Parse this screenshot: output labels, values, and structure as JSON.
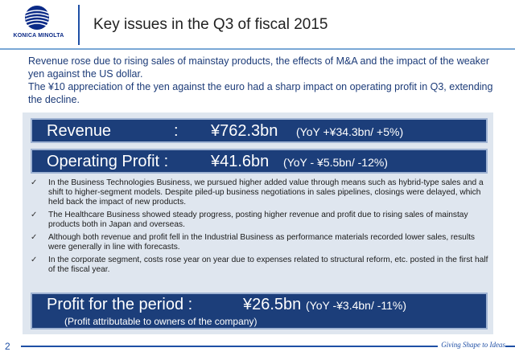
{
  "header": {
    "logo_text": "KONICA MINOLTA",
    "title": "Key issues in the Q3 of fiscal 2015"
  },
  "intro": [
    "Revenue rose due to rising sales of mainstay products, the effects of M&A and the impact of the weaker yen against the US dollar.",
    "The ¥10 appreciation of the yen against the euro had a sharp impact on operating profit in Q3, extending the decline."
  ],
  "revenue": {
    "label": "Revenue",
    "colon": ":",
    "value": "¥762.3bn",
    "yoy": "(YoY  +¥34.3bn/  +5%)"
  },
  "operating_profit": {
    "label": "Operating Profit :",
    "value": "¥41.6bn",
    "yoy": "(YoY   - ¥5.5bn/ -12%)"
  },
  "bullets": [
    "In the Business Technologies Business, we pursued higher added value through means such as hybrid-type sales and a shift to higher-segment models. Despite piled-up business negotiations in sales pipelines, closings were delayed, which held back the impact of new products.",
    "The Healthcare Business showed steady progress, posting higher revenue and profit due to rising sales of mainstay products both in Japan and overseas.",
    "Although both revenue and profit fell in the Industrial Business as performance materials recorded lower sales, results were generally in line with forecasts.",
    "In the corporate segment, costs rose year on year due to expenses related to structural reform, etc. posted in the first half of the fiscal year."
  ],
  "check_glyph": "✓",
  "period": {
    "label": "Profit for the period :",
    "value": "¥26.5bn",
    "yoy": "(YoY  -¥3.4bn/ -11%)",
    "sub": "(Profit attributable to owners of the company)"
  },
  "footer": {
    "page_number": "2",
    "tagline": "Giving Shape to Ideas"
  },
  "colors": {
    "brand_blue": "#1f4fa5",
    "bar_navy": "#1c3e7a",
    "panel_bg": "#dfe6ef",
    "intro_text": "#1c3b78"
  }
}
